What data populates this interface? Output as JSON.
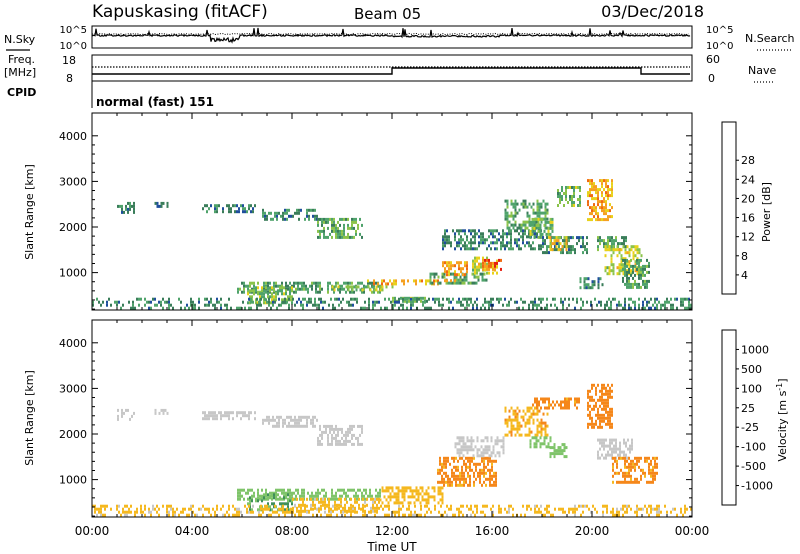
{
  "header": {
    "station": "Kapuskasing (fitACF)",
    "beam": "Beam 05",
    "date": "03/Dec/2018"
  },
  "noise_panel": {
    "left_label": "N.Sky",
    "left_ticks": [
      "10^5",
      "10^0"
    ],
    "right_label": "N.Search",
    "right_ticks": [
      "10^5",
      "10^0"
    ]
  },
  "freq_panel": {
    "left_label_1": "Freq.",
    "left_label_2": "[MHz]",
    "left_ticks": [
      "18",
      "8"
    ],
    "right_label": "Nave",
    "right_ticks": [
      "60",
      "0"
    ]
  },
  "cpid": {
    "label": "CPID",
    "value": "normal (fast) 151"
  },
  "x_axis": {
    "label": "Time UT",
    "ticks": [
      "00:00",
      "04:00",
      "08:00",
      "12:00",
      "16:00",
      "20:00",
      "00:00"
    ]
  },
  "colors": {
    "power_scale": [
      "#1a1aff",
      "#1f4e9c",
      "#3a7d5a",
      "#4fa36b",
      "#8bc34a",
      "#e8d21a",
      "#f5a020",
      "#f06a10",
      "#e51f10"
    ],
    "velocity_scale": [
      "#e51f10",
      "#f04a10",
      "#f5871a",
      "#f5b81f",
      "#c7c7c7",
      "#7fc46a",
      "#3f8f5a",
      "#2e4fa0",
      "#1a1aff"
    ],
    "ground_scatter": "#bdbdbd"
  },
  "chart_data": [
    {
      "type": "heatmap",
      "panel": "power",
      "ylabel": "Slant Range [km]",
      "yticks": [
        "1000",
        "2000",
        "3000",
        "4000"
      ],
      "ylim": [
        180,
        4500
      ],
      "xlim": [
        0,
        24
      ],
      "colorbar": {
        "label": "Power [dB]",
        "ticks": [
          "4",
          "8",
          "12",
          "16",
          "20",
          "24",
          "28"
        ],
        "range": [
          0,
          32
        ]
      },
      "regions": [
        {
          "t": [
            1.0,
            1.7
          ],
          "r": [
            2350,
            2550
          ],
          "v": 9
        },
        {
          "t": [
            2.5,
            3.0
          ],
          "r": [
            2450,
            2550
          ],
          "v": 8
        },
        {
          "t": [
            4.4,
            6.5
          ],
          "r": [
            2350,
            2500
          ],
          "v": 9
        },
        {
          "t": [
            6.8,
            9.0
          ],
          "r": [
            2150,
            2400
          ],
          "v": 10
        },
        {
          "t": [
            9.0,
            10.8
          ],
          "r": [
            1800,
            2200
          ],
          "v": 13
        },
        {
          "t": [
            5.8,
            11.5
          ],
          "r": [
            600,
            800
          ],
          "v": 12
        },
        {
          "t": [
            6.2,
            8.0
          ],
          "r": [
            330,
            700
          ],
          "v": 15
        },
        {
          "t": [
            9.5,
            12.0
          ],
          "r": [
            600,
            720
          ],
          "v": 16
        },
        {
          "t": [
            11.0,
            13.8
          ],
          "r": [
            720,
            850
          ],
          "v": 22
        },
        {
          "t": [
            12.0,
            13.5
          ],
          "r": [
            380,
            470
          ],
          "v": 14
        },
        {
          "t": [
            13.5,
            15.8
          ],
          "r": [
            780,
            1000
          ],
          "v": 12
        },
        {
          "t": [
            14.0,
            15.0
          ],
          "r": [
            850,
            1250
          ],
          "v": 24
        },
        {
          "t": [
            15.2,
            16.2
          ],
          "r": [
            1000,
            1350
          ],
          "v": 18
        },
        {
          "t": [
            15.6,
            16.4
          ],
          "r": [
            1050,
            1300
          ],
          "v": 26
        },
        {
          "t": [
            14.0,
            18.0
          ],
          "r": [
            1500,
            1950
          ],
          "v": 9
        },
        {
          "t": [
            16.5,
            18.2
          ],
          "r": [
            2000,
            2600
          ],
          "v": 12
        },
        {
          "t": [
            17.5,
            18.4
          ],
          "r": [
            1800,
            2200
          ],
          "v": 15
        },
        {
          "t": [
            18.0,
            19.8
          ],
          "r": [
            1450,
            1800
          ],
          "v": 10
        },
        {
          "t": [
            18.3,
            19.0
          ],
          "r": [
            1500,
            1800
          ],
          "v": 20
        },
        {
          "t": [
            18.6,
            19.5
          ],
          "r": [
            2500,
            2900
          ],
          "v": 14
        },
        {
          "t": [
            19.8,
            20.8
          ],
          "r": [
            2150,
            3050
          ],
          "v": 22
        },
        {
          "t": [
            20.2,
            21.4
          ],
          "r": [
            1500,
            1800
          ],
          "v": 12
        },
        {
          "t": [
            19.5,
            20.5
          ],
          "r": [
            650,
            900
          ],
          "v": 10
        },
        {
          "t": [
            20.5,
            22.0
          ],
          "r": [
            950,
            1600
          ],
          "v": 18
        },
        {
          "t": [
            21.2,
            22.3
          ],
          "r": [
            650,
            1300
          ],
          "v": 12
        },
        {
          "t": [
            0.0,
            24.0
          ],
          "r": [
            200,
            450
          ],
          "v": 10
        }
      ]
    },
    {
      "type": "heatmap",
      "panel": "velocity",
      "ylabel": "Slant Range [km]",
      "yticks": [
        "1000",
        "2000",
        "3000",
        "4000"
      ],
      "ylim": [
        180,
        4500
      ],
      "xlim": [
        0,
        24
      ],
      "colorbar": {
        "label": "Velocity [m s^-1]",
        "ticks": [
          "1000",
          "500",
          "100",
          "25",
          "-25",
          "-100",
          "-500",
          "-1000"
        ]
      },
      "regions": [
        {
          "t": [
            1.0,
            1.7
          ],
          "r": [
            2350,
            2550
          ],
          "v": 0
        },
        {
          "t": [
            2.5,
            3.0
          ],
          "r": [
            2450,
            2550
          ],
          "v": 0
        },
        {
          "t": [
            4.4,
            6.5
          ],
          "r": [
            2350,
            2500
          ],
          "v": 0
        },
        {
          "t": [
            6.8,
            9.0
          ],
          "r": [
            2150,
            2400
          ],
          "v": 0
        },
        {
          "t": [
            9.0,
            10.8
          ],
          "r": [
            1800,
            2200
          ],
          "v": 0
        },
        {
          "t": [
            5.8,
            11.5
          ],
          "r": [
            600,
            800
          ],
          "v": 60
        },
        {
          "t": [
            6.2,
            8.0
          ],
          "r": [
            330,
            700
          ],
          "v": 90
        },
        {
          "t": [
            8.0,
            11.5
          ],
          "r": [
            330,
            600
          ],
          "v": -40
        },
        {
          "t": [
            11.5,
            14.0
          ],
          "r": [
            500,
            850
          ],
          "v": -60
        },
        {
          "t": [
            13.8,
            16.2
          ],
          "r": [
            850,
            1500
          ],
          "v": -140
        },
        {
          "t": [
            14.5,
            16.5
          ],
          "r": [
            1500,
            1950
          ],
          "v": 0
        },
        {
          "t": [
            16.5,
            18.2
          ],
          "r": [
            2000,
            2600
          ],
          "v": -80
        },
        {
          "t": [
            17.5,
            18.4
          ],
          "r": [
            1750,
            1950
          ],
          "v": 60
        },
        {
          "t": [
            18.3,
            19.0
          ],
          "r": [
            1500,
            1800
          ],
          "v": 60
        },
        {
          "t": [
            17.6,
            19.5
          ],
          "r": [
            2550,
            2800
          ],
          "v": -150
        },
        {
          "t": [
            19.8,
            20.8
          ],
          "r": [
            2150,
            3100
          ],
          "v": -300
        },
        {
          "t": [
            20.2,
            21.6
          ],
          "r": [
            1500,
            1900
          ],
          "v": 0
        },
        {
          "t": [
            20.8,
            22.6
          ],
          "r": [
            950,
            1500
          ],
          "v": -140
        },
        {
          "t": [
            0.0,
            24.0
          ],
          "r": [
            200,
            450
          ],
          "v": -40
        }
      ]
    }
  ]
}
